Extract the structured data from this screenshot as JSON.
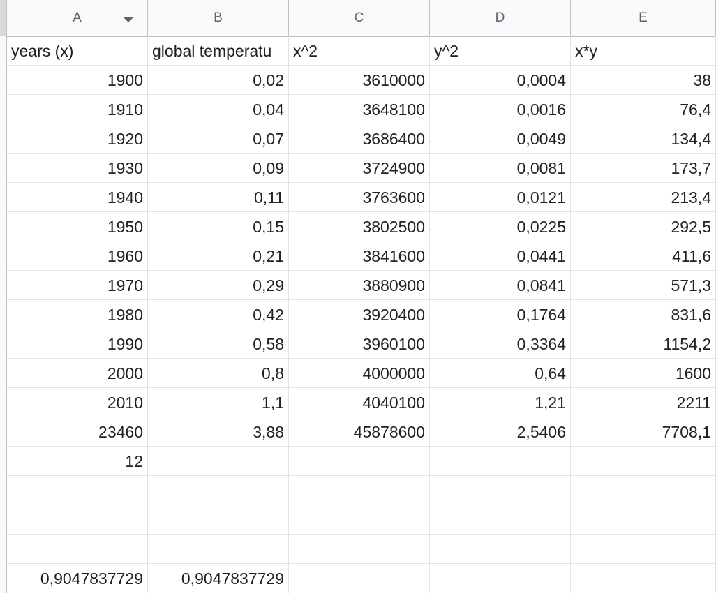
{
  "columns": [
    {
      "id": "A",
      "label": "A"
    },
    {
      "id": "B",
      "label": "B"
    },
    {
      "id": "C",
      "label": "C"
    },
    {
      "id": "D",
      "label": "D"
    },
    {
      "id": "E",
      "label": "E"
    }
  ],
  "header_row": {
    "A": "years (x)",
    "B": "global temperatu",
    "C": "x^2",
    "D": "y^2",
    "E": "x*y"
  },
  "rows": [
    {
      "A": "1900",
      "B": "0,02",
      "C": "3610000",
      "D": "0,0004",
      "E": "38"
    },
    {
      "A": "1910",
      "B": "0,04",
      "C": "3648100",
      "D": "0,0016",
      "E": "76,4"
    },
    {
      "A": "1920",
      "B": "0,07",
      "C": "3686400",
      "D": "0,0049",
      "E": "134,4"
    },
    {
      "A": "1930",
      "B": "0,09",
      "C": "3724900",
      "D": "0,0081",
      "E": "173,7"
    },
    {
      "A": "1940",
      "B": "0,11",
      "C": "3763600",
      "D": "0,0121",
      "E": "213,4"
    },
    {
      "A": "1950",
      "B": "0,15",
      "C": "3802500",
      "D": "0,0225",
      "E": "292,5"
    },
    {
      "A": "1960",
      "B": "0,21",
      "C": "3841600",
      "D": "0,0441",
      "E": "411,6"
    },
    {
      "A": "1970",
      "B": "0,29",
      "C": "3880900",
      "D": "0,0841",
      "E": "571,3"
    },
    {
      "A": "1980",
      "B": "0,42",
      "C": "3920400",
      "D": "0,1764",
      "E": "831,6"
    },
    {
      "A": "1990",
      "B": "0,58",
      "C": "3960100",
      "D": "0,3364",
      "E": "1154,2"
    },
    {
      "A": "2000",
      "B": "0,8",
      "C": "4000000",
      "D": "0,64",
      "E": "1600"
    },
    {
      "A": "2010",
      "B": "1,1",
      "C": "4040100",
      "D": "1,21",
      "E": "2211"
    },
    {
      "A": "23460",
      "B": "3,88",
      "C": "45878600",
      "D": "2,5406",
      "E": "7708,1"
    },
    {
      "A": "12",
      "B": "",
      "C": "",
      "D": "",
      "E": ""
    },
    {
      "A": "",
      "B": "",
      "C": "",
      "D": "",
      "E": ""
    },
    {
      "A": "",
      "B": "",
      "C": "",
      "D": "",
      "E": ""
    },
    {
      "A": "",
      "B": "",
      "C": "",
      "D": "",
      "E": ""
    },
    {
      "A": "0,9047837729",
      "B": "0,9047837729",
      "C": "",
      "D": "",
      "E": ""
    }
  ],
  "icons": {
    "column_a_menu": "dropdown-arrow-icon"
  },
  "colors": {
    "header_bg": "#f8f9fa",
    "grid_line": "#e2e2e2",
    "text": "#202124"
  }
}
